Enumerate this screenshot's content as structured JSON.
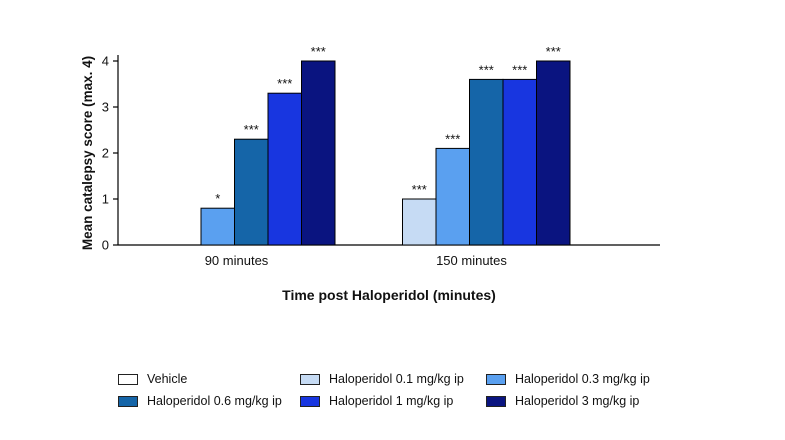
{
  "chart_data": {
    "type": "bar",
    "title": "",
    "xlabel": "Time post Haloperidol (minutes)",
    "ylabel": "Mean catalepsy score (max. 4)",
    "ylim": [
      0,
      4
    ],
    "yticks": [
      0,
      1,
      2,
      3,
      4
    ],
    "categories": [
      "90 minutes",
      "150 minutes"
    ],
    "series": [
      {
        "name": "Vehicle",
        "color": "#ffffff",
        "values": [
          0,
          0
        ],
        "labels": [
          "",
          ""
        ]
      },
      {
        "name": "Haloperidol 0.1 mg/kg ip",
        "color": "#c6dbf4",
        "values": [
          0,
          1.0
        ],
        "labels": [
          "",
          "***"
        ]
      },
      {
        "name": "Haloperidol 0.3 mg/kg ip",
        "color": "#5aa0f0",
        "values": [
          0.8,
          2.1
        ],
        "labels": [
          "*",
          "***"
        ]
      },
      {
        "name": "Haloperidol 0.6 mg/kg ip",
        "color": "#1565a8",
        "values": [
          2.3,
          3.6
        ],
        "labels": [
          "***",
          "***"
        ]
      },
      {
        "name": "Haloperidol 1 mg/kg ip",
        "color": "#1836e0",
        "values": [
          3.3,
          3.6
        ],
        "labels": [
          "***",
          "***"
        ]
      },
      {
        "name": "Haloperidol 3 mg/kg ip",
        "color": "#0a1480",
        "values": [
          4.0,
          4.0
        ],
        "labels": [
          "***",
          "***"
        ]
      }
    ],
    "legend_position": "bottom"
  }
}
